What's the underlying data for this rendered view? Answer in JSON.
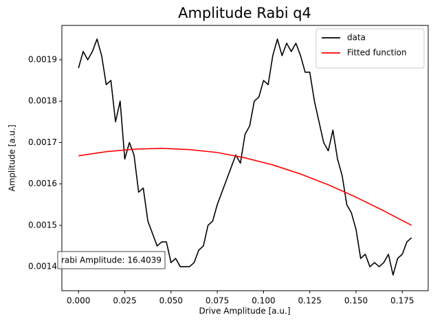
{
  "chart_data": {
    "type": "line",
    "title": "Amplitude Rabi q4",
    "x_label": "Drive Amplitude [a.u.]",
    "y_label": "Amplitude [a.u.]",
    "annotation": "rabi Amplitude: 16.4039",
    "legend": "upper right",
    "grid": false,
    "xlim": [
      -0.009,
      0.189
    ],
    "ylim": [
      0.001342,
      0.001983
    ],
    "xticks": [
      {
        "value": 0,
        "label": "0.000"
      },
      {
        "value": 0.025,
        "label": "0.025"
      },
      {
        "value": 0.05,
        "label": "0.050"
      },
      {
        "value": 0.075,
        "label": "0.075"
      },
      {
        "value": 0.1,
        "label": "0.100"
      },
      {
        "value": 0.125,
        "label": "0.125"
      },
      {
        "value": 0.15,
        "label": "0.150"
      },
      {
        "value": 0.175,
        "label": "0.175"
      }
    ],
    "yticks": [
      0.0014,
      0.0015,
      0.0016,
      0.0017,
      0.0018,
      0.0019
    ],
    "series": [
      {
        "name": "data",
        "color": "#000000",
        "x": [
          0,
          0.0025,
          0.005,
          0.0075,
          0.01,
          0.0125,
          0.015,
          0.0175,
          0.02,
          0.0225,
          0.025,
          0.0275,
          0.03,
          0.0325,
          0.035,
          0.0375,
          0.04,
          0.0425,
          0.045,
          0.0475,
          0.05,
          0.0525,
          0.055,
          0.0575,
          0.06,
          0.0625,
          0.065,
          0.0675,
          0.07,
          0.0725,
          0.075,
          0.0775,
          0.08,
          0.0825,
          0.085,
          0.0875,
          0.09,
          0.0925,
          0.095,
          0.0975,
          0.1,
          0.1025,
          0.105,
          0.1075,
          0.11,
          0.1125,
          0.115,
          0.1175,
          0.12,
          0.1225,
          0.125,
          0.1275,
          0.13,
          0.1325,
          0.135,
          0.1375,
          0.14,
          0.1425,
          0.145,
          0.1475,
          0.15,
          0.1525,
          0.155,
          0.1575,
          0.16,
          0.1625,
          0.165,
          0.1675,
          0.17,
          0.1725,
          0.175,
          0.1775,
          0.18
        ],
        "values": [
          0.00188,
          0.00192,
          0.0019,
          0.00192,
          0.00195,
          0.00191,
          0.00184,
          0.00185,
          0.00175,
          0.0018,
          0.00166,
          0.0017,
          0.00167,
          0.00158,
          0.00159,
          0.00151,
          0.00148,
          0.00145,
          0.00146,
          0.00146,
          0.00141,
          0.00142,
          0.0014,
          0.0014,
          0.0014,
          0.00141,
          0.00144,
          0.00145,
          0.0015,
          0.00151,
          0.00155,
          0.00158,
          0.00161,
          0.00164,
          0.00167,
          0.00165,
          0.00172,
          0.00174,
          0.0018,
          0.00181,
          0.00185,
          0.00184,
          0.00191,
          0.00195,
          0.00191,
          0.00194,
          0.00192,
          0.00194,
          0.00191,
          0.00187,
          0.00187,
          0.0018,
          0.00175,
          0.0017,
          0.00168,
          0.00173,
          0.00166,
          0.00162,
          0.00155,
          0.00153,
          0.00149,
          0.00142,
          0.00143,
          0.0014,
          0.00141,
          0.0014,
          0.00141,
          0.00143,
          0.00138,
          0.00142,
          0.00143,
          0.00146,
          0.00147
        ]
      },
      {
        "name": "Fitted function",
        "color": "#ff0000",
        "x": [
          0,
          0.015,
          0.03,
          0.045,
          0.06,
          0.075,
          0.09,
          0.105,
          0.12,
          0.135,
          0.15,
          0.165,
          0.18
        ],
        "values": [
          0.001668,
          0.001678,
          0.001684,
          0.001686,
          0.001683,
          0.001676,
          0.001663,
          0.001646,
          0.001624,
          0.001598,
          0.001568,
          0.001535,
          0.0015
        ]
      }
    ]
  }
}
